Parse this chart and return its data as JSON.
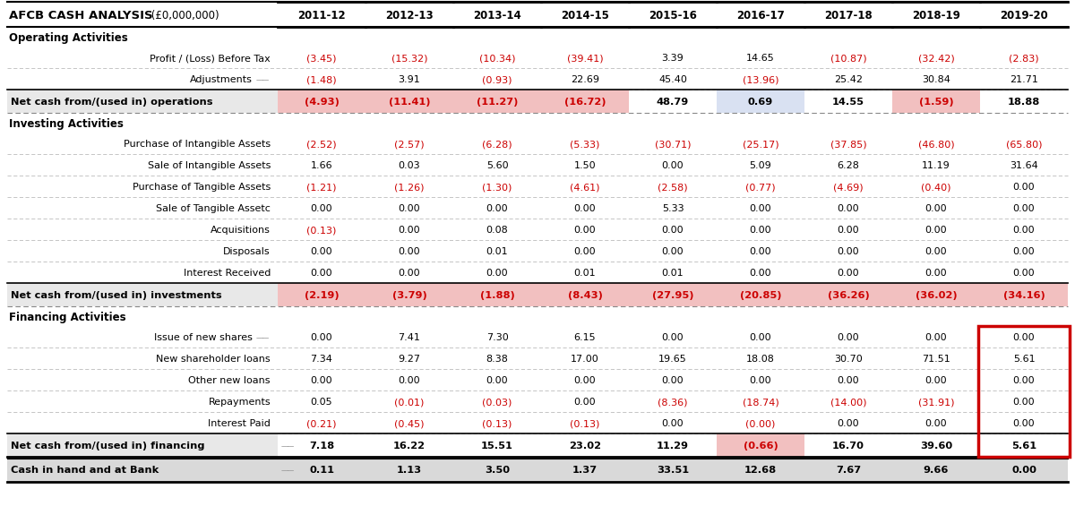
{
  "title": "AFCB CASH ANALYSIS",
  "title_suffix": " (£0,000,000)",
  "columns": [
    "2011-12",
    "2012-13",
    "2013-14",
    "2014-15",
    "2015-16",
    "2016-17",
    "2017-18",
    "2018-19",
    "2019-20"
  ],
  "sections": [
    {
      "type": "section_header",
      "label": "Operating Activities"
    },
    {
      "type": "data_row",
      "label": "Profit / (Loss) Before Tax",
      "values": [
        "(3.45)",
        "(15.32)",
        "(10.34)",
        "(39.41)",
        "3.39",
        "14.65",
        "(10.87)",
        "(32.42)",
        "(2.83)"
      ],
      "red": [
        true,
        true,
        true,
        true,
        false,
        false,
        true,
        true,
        true
      ]
    },
    {
      "type": "data_row",
      "label": "Adjustments",
      "has_arrow": true,
      "values": [
        "(1.48)",
        "3.91",
        "(0.93)",
        "22.69",
        "45.40",
        "(13.96)",
        "25.42",
        "30.84",
        "21.71"
      ],
      "red": [
        true,
        false,
        true,
        false,
        false,
        true,
        false,
        false,
        false
      ]
    },
    {
      "type": "subtotal_row",
      "label": "Net cash from/(used in) operations",
      "values": [
        "(4.93)",
        "(11.41)",
        "(11.27)",
        "(16.72)",
        "48.79",
        "0.69",
        "14.55",
        "(1.59)",
        "18.88"
      ],
      "red": [
        true,
        true,
        true,
        true,
        false,
        false,
        false,
        true,
        false
      ],
      "highlight": [
        true,
        true,
        true,
        true,
        false,
        true,
        false,
        true,
        false
      ]
    },
    {
      "type": "section_header",
      "label": "Investing Activities"
    },
    {
      "type": "data_row",
      "label": "Purchase of Intangible Assets",
      "values": [
        "(2.52)",
        "(2.57)",
        "(6.28)",
        "(5.33)",
        "(30.71)",
        "(25.17)",
        "(37.85)",
        "(46.80)",
        "(65.80)"
      ],
      "red": [
        true,
        true,
        true,
        true,
        true,
        true,
        true,
        true,
        true
      ]
    },
    {
      "type": "data_row",
      "label": "Sale of Intangible Assets",
      "values": [
        "1.66",
        "0.03",
        "5.60",
        "1.50",
        "0.00",
        "5.09",
        "6.28",
        "11.19",
        "31.64"
      ],
      "red": [
        false,
        false,
        false,
        false,
        false,
        false,
        false,
        false,
        false
      ]
    },
    {
      "type": "data_row",
      "label": "Purchase of Tangible Assets",
      "values": [
        "(1.21)",
        "(1.26)",
        "(1.30)",
        "(4.61)",
        "(2.58)",
        "(0.77)",
        "(4.69)",
        "(0.40)",
        "0.00"
      ],
      "red": [
        true,
        true,
        true,
        true,
        true,
        true,
        true,
        true,
        false
      ]
    },
    {
      "type": "data_row",
      "label": "Sale of Tangible Assetc",
      "values": [
        "0.00",
        "0.00",
        "0.00",
        "0.00",
        "5.33",
        "0.00",
        "0.00",
        "0.00",
        "0.00"
      ],
      "red": [
        false,
        false,
        false,
        false,
        false,
        false,
        false,
        false,
        false
      ]
    },
    {
      "type": "data_row",
      "label": "Acquisitions",
      "values": [
        "(0.13)",
        "0.00",
        "0.08",
        "0.00",
        "0.00",
        "0.00",
        "0.00",
        "0.00",
        "0.00"
      ],
      "red": [
        true,
        false,
        false,
        false,
        false,
        false,
        false,
        false,
        false
      ]
    },
    {
      "type": "data_row",
      "label": "Disposals",
      "values": [
        "0.00",
        "0.00",
        "0.01",
        "0.00",
        "0.00",
        "0.00",
        "0.00",
        "0.00",
        "0.00"
      ],
      "red": [
        false,
        false,
        false,
        false,
        false,
        false,
        false,
        false,
        false
      ]
    },
    {
      "type": "data_row",
      "label": "Interest Received",
      "values": [
        "0.00",
        "0.00",
        "0.00",
        "0.01",
        "0.01",
        "0.00",
        "0.00",
        "0.00",
        "0.00"
      ],
      "red": [
        false,
        false,
        false,
        false,
        false,
        false,
        false,
        false,
        false
      ]
    },
    {
      "type": "subtotal_row",
      "label": "Net cash from/(used in) investments",
      "values": [
        "(2.19)",
        "(3.79)",
        "(1.88)",
        "(8.43)",
        "(27.95)",
        "(20.85)",
        "(36.26)",
        "(36.02)",
        "(34.16)"
      ],
      "red": [
        true,
        true,
        true,
        true,
        true,
        true,
        true,
        true,
        true
      ],
      "highlight": [
        true,
        true,
        true,
        true,
        true,
        true,
        true,
        true,
        true
      ]
    },
    {
      "type": "section_header",
      "label": "Financing Activities"
    },
    {
      "type": "data_row",
      "label": "Issue of new shares",
      "has_arrow": true,
      "values": [
        "0.00",
        "7.41",
        "7.30",
        "6.15",
        "0.00",
        "0.00",
        "0.00",
        "0.00",
        "0.00"
      ],
      "red": [
        false,
        false,
        false,
        false,
        false,
        false,
        false,
        false,
        false
      ]
    },
    {
      "type": "data_row",
      "label": "New shareholder loans",
      "values": [
        "7.34",
        "9.27",
        "8.38",
        "17.00",
        "19.65",
        "18.08",
        "30.70",
        "71.51",
        "5.61"
      ],
      "red": [
        false,
        false,
        false,
        false,
        false,
        false,
        false,
        false,
        false
      ]
    },
    {
      "type": "data_row",
      "label": "Other new loans",
      "values": [
        "0.00",
        "0.00",
        "0.00",
        "0.00",
        "0.00",
        "0.00",
        "0.00",
        "0.00",
        "0.00"
      ],
      "red": [
        false,
        false,
        false,
        false,
        false,
        false,
        false,
        false,
        false
      ]
    },
    {
      "type": "data_row",
      "label": "Repayments",
      "values": [
        "0.05",
        "(0.01)",
        "(0.03)",
        "0.00",
        "(8.36)",
        "(18.74)",
        "(14.00)",
        "(31.91)",
        "0.00"
      ],
      "red": [
        false,
        true,
        true,
        false,
        true,
        true,
        true,
        true,
        false
      ]
    },
    {
      "type": "data_row",
      "label": "Interest Paid",
      "values": [
        "(0.21)",
        "(0.45)",
        "(0.13)",
        "(0.13)",
        "0.00",
        "(0.00)",
        "0.00",
        "0.00",
        "0.00"
      ],
      "red": [
        true,
        true,
        true,
        true,
        false,
        true,
        false,
        false,
        false
      ]
    },
    {
      "type": "subtotal_row",
      "label": "Net cash from/(used in) financing",
      "has_arrow": true,
      "values": [
        "7.18",
        "16.22",
        "15.51",
        "23.02",
        "11.29",
        "(0.66)",
        "16.70",
        "39.60",
        "5.61"
      ],
      "red": [
        false,
        false,
        false,
        false,
        false,
        true,
        false,
        false,
        false
      ],
      "highlight": [
        false,
        false,
        false,
        false,
        false,
        true,
        false,
        false,
        false
      ],
      "last_col_box": true
    },
    {
      "type": "final_row",
      "label": "Cash in hand and at Bank",
      "has_arrow": true,
      "values": [
        "0.11",
        "1.13",
        "3.50",
        "1.37",
        "33.51",
        "12.68",
        "7.67",
        "9.66",
        "0.00"
      ],
      "red": [
        false,
        false,
        false,
        false,
        false,
        false,
        false,
        false,
        false
      ]
    }
  ],
  "colors": {
    "red": "#CC0000",
    "black": "#000000",
    "subtotal_bg_red": "#F2C0C0",
    "subtotal_bg_blue": "#D9E1F2",
    "dashed_line": "#AAAAAA",
    "box_red": "#CC0000",
    "label_bg": "#E8E8E8",
    "final_bg": "#D9D9D9"
  }
}
